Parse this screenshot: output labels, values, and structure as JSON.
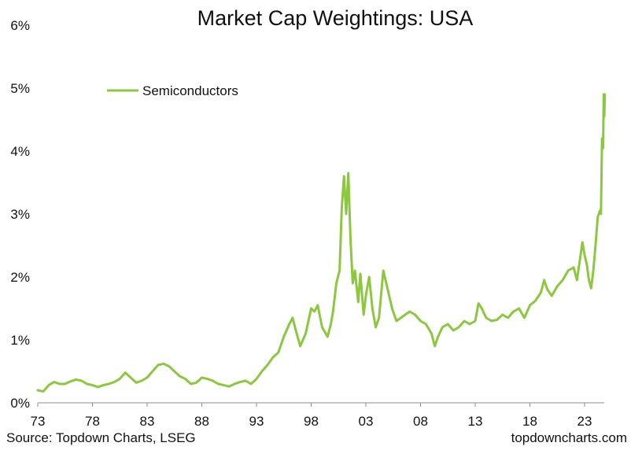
{
  "chart_data": {
    "type": "line",
    "title": "Market Cap Weightings: USA",
    "xlabel": "",
    "ylabel": "",
    "xlim": [
      1973,
      2024.8
    ],
    "ylim": [
      0,
      6
    ],
    "x_ticks": [
      "73",
      "78",
      "83",
      "88",
      "93",
      "98",
      "03",
      "08",
      "13",
      "18",
      "23"
    ],
    "x_tick_values": [
      1973,
      1978,
      1983,
      1988,
      1993,
      1998,
      2003,
      2008,
      2013,
      2018,
      2023
    ],
    "y_ticks": [
      "0%",
      "1%",
      "2%",
      "3%",
      "4%",
      "5%",
      "6%"
    ],
    "y_tick_values": [
      0,
      1,
      2,
      3,
      4,
      5,
      6
    ],
    "grid": false,
    "legend": {
      "position": "top-left",
      "entries": [
        "Semiconductors"
      ]
    },
    "series": [
      {
        "name": "Semiconductors",
        "color": "#8dc63f",
        "unit": "%",
        "points": [
          [
            1973.0,
            0.2
          ],
          [
            1973.5,
            0.18
          ],
          [
            1974.0,
            0.28
          ],
          [
            1974.5,
            0.33
          ],
          [
            1975.0,
            0.3
          ],
          [
            1975.5,
            0.3
          ],
          [
            1976.0,
            0.34
          ],
          [
            1976.5,
            0.37
          ],
          [
            1977.0,
            0.35
          ],
          [
            1977.5,
            0.3
          ],
          [
            1978.0,
            0.28
          ],
          [
            1978.5,
            0.25
          ],
          [
            1979.0,
            0.28
          ],
          [
            1979.5,
            0.3
          ],
          [
            1980.0,
            0.33
          ],
          [
            1980.5,
            0.38
          ],
          [
            1981.0,
            0.48
          ],
          [
            1981.5,
            0.4
          ],
          [
            1982.0,
            0.32
          ],
          [
            1982.5,
            0.35
          ],
          [
            1983.0,
            0.4
          ],
          [
            1983.5,
            0.5
          ],
          [
            1984.0,
            0.6
          ],
          [
            1984.5,
            0.62
          ],
          [
            1985.0,
            0.58
          ],
          [
            1985.5,
            0.5
          ],
          [
            1986.0,
            0.42
          ],
          [
            1986.5,
            0.38
          ],
          [
            1987.0,
            0.3
          ],
          [
            1987.5,
            0.32
          ],
          [
            1988.0,
            0.4
          ],
          [
            1988.5,
            0.38
          ],
          [
            1989.0,
            0.35
          ],
          [
            1989.5,
            0.3
          ],
          [
            1990.0,
            0.28
          ],
          [
            1990.5,
            0.26
          ],
          [
            1991.0,
            0.3
          ],
          [
            1991.5,
            0.33
          ],
          [
            1992.0,
            0.35
          ],
          [
            1992.5,
            0.3
          ],
          [
            1993.0,
            0.38
          ],
          [
            1993.5,
            0.5
          ],
          [
            1994.0,
            0.6
          ],
          [
            1994.5,
            0.72
          ],
          [
            1995.0,
            0.8
          ],
          [
            1995.5,
            1.05
          ],
          [
            1996.0,
            1.25
          ],
          [
            1996.3,
            1.35
          ],
          [
            1996.6,
            1.15
          ],
          [
            1997.0,
            0.9
          ],
          [
            1997.5,
            1.1
          ],
          [
            1998.0,
            1.5
          ],
          [
            1998.3,
            1.45
          ],
          [
            1998.6,
            1.55
          ],
          [
            1999.0,
            1.2
          ],
          [
            1999.5,
            1.05
          ],
          [
            1999.8,
            1.25
          ],
          [
            2000.0,
            1.45
          ],
          [
            2000.3,
            1.9
          ],
          [
            2000.6,
            2.1
          ],
          [
            2000.8,
            3.1
          ],
          [
            2001.0,
            3.6
          ],
          [
            2001.2,
            3.0
          ],
          [
            2001.4,
            3.65
          ],
          [
            2001.6,
            2.6
          ],
          [
            2001.8,
            1.9
          ],
          [
            2002.0,
            2.1
          ],
          [
            2002.3,
            1.6
          ],
          [
            2002.5,
            2.05
          ],
          [
            2002.8,
            1.4
          ],
          [
            2003.0,
            1.7
          ],
          [
            2003.3,
            2.0
          ],
          [
            2003.6,
            1.5
          ],
          [
            2003.9,
            1.2
          ],
          [
            2004.2,
            1.35
          ],
          [
            2004.6,
            2.1
          ],
          [
            2005.0,
            1.8
          ],
          [
            2005.4,
            1.5
          ],
          [
            2005.8,
            1.3
          ],
          [
            2006.2,
            1.35
          ],
          [
            2006.6,
            1.4
          ],
          [
            2007.0,
            1.45
          ],
          [
            2007.5,
            1.4
          ],
          [
            2008.0,
            1.3
          ],
          [
            2008.5,
            1.25
          ],
          [
            2009.0,
            1.1
          ],
          [
            2009.3,
            0.9
          ],
          [
            2009.6,
            1.05
          ],
          [
            2010.0,
            1.2
          ],
          [
            2010.5,
            1.25
          ],
          [
            2011.0,
            1.15
          ],
          [
            2011.5,
            1.2
          ],
          [
            2012.0,
            1.3
          ],
          [
            2012.5,
            1.25
          ],
          [
            2013.0,
            1.3
          ],
          [
            2013.3,
            1.58
          ],
          [
            2013.6,
            1.5
          ],
          [
            2014.0,
            1.35
          ],
          [
            2014.5,
            1.3
          ],
          [
            2015.0,
            1.32
          ],
          [
            2015.5,
            1.4
          ],
          [
            2016.0,
            1.35
          ],
          [
            2016.5,
            1.45
          ],
          [
            2017.0,
            1.5
          ],
          [
            2017.5,
            1.35
          ],
          [
            2018.0,
            1.55
          ],
          [
            2018.5,
            1.62
          ],
          [
            2019.0,
            1.75
          ],
          [
            2019.3,
            1.95
          ],
          [
            2019.6,
            1.8
          ],
          [
            2020.0,
            1.7
          ],
          [
            2020.5,
            1.85
          ],
          [
            2021.0,
            1.95
          ],
          [
            2021.5,
            2.1
          ],
          [
            2022.0,
            2.15
          ],
          [
            2022.3,
            1.95
          ],
          [
            2022.6,
            2.3
          ],
          [
            2022.8,
            2.55
          ],
          [
            2023.0,
            2.35
          ],
          [
            2023.2,
            2.2
          ],
          [
            2023.4,
            1.95
          ],
          [
            2023.6,
            1.82
          ],
          [
            2023.8,
            2.1
          ],
          [
            2024.0,
            2.5
          ],
          [
            2024.2,
            2.95
          ],
          [
            2024.4,
            3.05
          ],
          [
            2024.5,
            3.0
          ],
          [
            2024.6,
            4.2
          ],
          [
            2024.7,
            4.05
          ],
          [
            2024.75,
            4.9
          ],
          [
            2024.8,
            4.55
          ],
          [
            2024.85,
            4.9
          ]
        ]
      }
    ],
    "footer_source": "Source: Topdown Charts, LSEG",
    "footer_brand": "topdowncharts.com"
  }
}
